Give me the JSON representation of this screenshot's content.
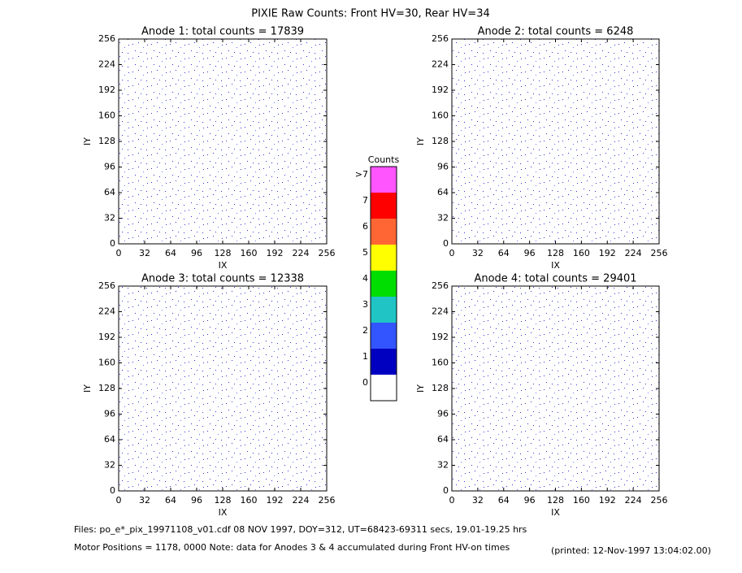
{
  "title": "PIXIE Raw Counts:  Front HV=30, Rear HV=34",
  "chart_data": [
    {
      "type": "heatmap",
      "title": "Anode 1: total counts = 17839",
      "xlabel": "IX",
      "ylabel": "IY",
      "xlim": [
        0,
        256
      ],
      "ylim": [
        0,
        256
      ],
      "xticks": [
        0,
        32,
        64,
        96,
        128,
        160,
        192,
        224,
        256
      ],
      "yticks": [
        0,
        32,
        64,
        96,
        128,
        160,
        192,
        224,
        256
      ]
    },
    {
      "type": "heatmap",
      "title": "Anode 2: total counts = 6248",
      "xlabel": "IX",
      "ylabel": "IY",
      "xlim": [
        0,
        256
      ],
      "ylim": [
        0,
        256
      ],
      "xticks": [
        0,
        32,
        64,
        96,
        128,
        160,
        192,
        224,
        256
      ],
      "yticks": [
        0,
        32,
        64,
        96,
        128,
        160,
        192,
        224,
        256
      ]
    },
    {
      "type": "heatmap",
      "title": "Anode 3: total counts = 12338",
      "xlabel": "IX",
      "ylabel": "IY",
      "xlim": [
        0,
        256
      ],
      "ylim": [
        0,
        256
      ],
      "xticks": [
        0,
        32,
        64,
        96,
        128,
        160,
        192,
        224,
        256
      ],
      "yticks": [
        0,
        32,
        64,
        96,
        128,
        160,
        192,
        224,
        256
      ]
    },
    {
      "type": "heatmap",
      "title": "Anode 4: total counts = 29401",
      "xlabel": "IX",
      "ylabel": "IY",
      "xlim": [
        0,
        256
      ],
      "ylim": [
        0,
        256
      ],
      "xticks": [
        0,
        32,
        64,
        96,
        128,
        160,
        192,
        224,
        256
      ],
      "yticks": [
        0,
        32,
        64,
        96,
        128,
        160,
        192,
        224,
        256
      ]
    }
  ],
  "colorbar": {
    "title": "Counts",
    "levels": [
      {
        "label": "0",
        "color": "#ffffff"
      },
      {
        "label": "1",
        "color": "#0000c0"
      },
      {
        "label": "2",
        "color": "#3355ff"
      },
      {
        "label": "3",
        "color": "#20c4c4"
      },
      {
        "label": "4",
        "color": "#00dd00"
      },
      {
        "label": "5",
        "color": "#ffff00"
      },
      {
        "label": "6",
        "color": "#ff6633"
      },
      {
        "label": "7",
        "color": "#ff0000"
      },
      {
        "label": ">7",
        "color": "#ff55ff"
      }
    ]
  },
  "footer": {
    "files": "Files: po_e*_pix_19971108_v01.cdf    08 NOV 1997, DOY=312, UT=68423-69311 secs, 19.01-19.25 hrs",
    "motor": "Motor Positions = 1178, 0000    Note: data for Anodes 3 & 4 accumulated during Front HV-on times",
    "printed": "(printed: 12-Nov-1997 13:04:02.00)"
  }
}
